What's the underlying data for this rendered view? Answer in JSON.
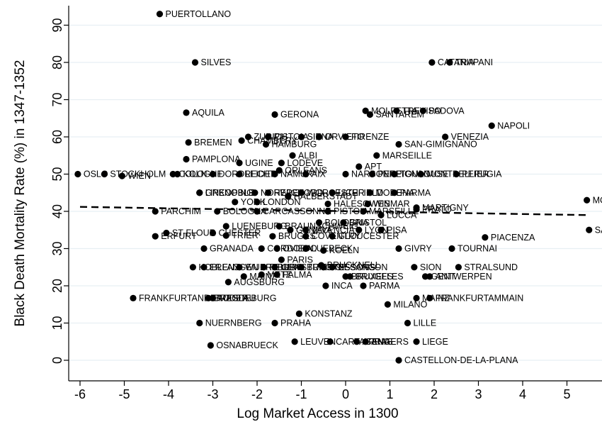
{
  "chart_data": {
    "type": "scatter",
    "xlabel": "Log Market Access in 1300",
    "ylabel": "Black Death Mortality Rate (%) in 1347-1352",
    "xlim": [
      -6.3,
      5.6
    ],
    "ylim": [
      -2,
      95
    ],
    "xticks": [
      -6,
      -5,
      -4,
      -3,
      -2,
      -1,
      0,
      1,
      2,
      3,
      4,
      5
    ],
    "yticks": [
      0,
      10,
      20,
      30,
      40,
      50,
      60,
      70,
      80,
      90
    ],
    "grid": "horizontal",
    "fit_line": [
      [
        -6.0,
        41.2
      ],
      [
        5.45,
        39.0
      ]
    ],
    "points": [
      {
        "x": -4.2,
        "y": 93,
        "label": "PUERTOLLANO"
      },
      {
        "x": -3.4,
        "y": 80,
        "label": "SILVES"
      },
      {
        "x": 1.95,
        "y": 80,
        "label": "CATANIA"
      },
      {
        "x": 2.35,
        "y": 80,
        "label": "TRAPANI"
      },
      {
        "x": -3.6,
        "y": 66.5,
        "label": "AQUILA"
      },
      {
        "x": -1.6,
        "y": 66,
        "label": "GERONA"
      },
      {
        "x": 0.45,
        "y": 67,
        "label": "MOLFETTA"
      },
      {
        "x": 1.15,
        "y": 67,
        "label": "TREVISO"
      },
      {
        "x": 1.75,
        "y": 67,
        "label": "PADOVA"
      },
      {
        "x": 0.55,
        "y": 66,
        "label": "SANTAREM"
      },
      {
        "x": 3.3,
        "y": 63,
        "label": "NAPOLI"
      },
      {
        "x": -3.55,
        "y": 58.5,
        "label": "BREMEN"
      },
      {
        "x": -2.2,
        "y": 60,
        "label": "ZURICH"
      },
      {
        "x": -2.35,
        "y": 59,
        "label": "CHAMBERY"
      },
      {
        "x": -1.75,
        "y": 60,
        "label": "PISTOIA"
      },
      {
        "x": -1.8,
        "y": 58,
        "label": "HAMBURG"
      },
      {
        "x": -1.0,
        "y": 60,
        "label": "SIENA"
      },
      {
        "x": -0.6,
        "y": 60,
        "label": "ORVIETO"
      },
      {
        "x": 0.0,
        "y": 60,
        "label": "FIRENZE"
      },
      {
        "x": 2.25,
        "y": 60,
        "label": "VENEZIA"
      },
      {
        "x": 1.2,
        "y": 58,
        "label": "SAN-GIMIGNANO"
      },
      {
        "x": -3.6,
        "y": 54,
        "label": "PAMPLONA"
      },
      {
        "x": -1.2,
        "y": 55,
        "label": "ALBI"
      },
      {
        "x": 0.7,
        "y": 55,
        "label": "MARSEILLE"
      },
      {
        "x": -2.4,
        "y": 53,
        "label": "UGINE"
      },
      {
        "x": -1.45,
        "y": 53,
        "label": "LODEVE"
      },
      {
        "x": -1.5,
        "y": 51,
        "label": "ORLEANS"
      },
      {
        "x": 0.3,
        "y": 52,
        "label": "APT"
      },
      {
        "x": -6.05,
        "y": 50,
        "label": "OSLO"
      },
      {
        "x": -5.45,
        "y": 50,
        "label": "STOCKHOLM"
      },
      {
        "x": -5.05,
        "y": 49.5,
        "label": "WIEN"
      },
      {
        "x": -3.9,
        "y": 50,
        "label": "COLOGNE"
      },
      {
        "x": -3.8,
        "y": 50,
        "label": "KOLN"
      },
      {
        "x": -3.0,
        "y": 50,
        "label": "DORDRECHT"
      },
      {
        "x": -2.4,
        "y": 50,
        "label": "LEIDEN"
      },
      {
        "x": -1.6,
        "y": 50,
        "label": "NAMUR"
      },
      {
        "x": -0.9,
        "y": 50,
        "label": "AIX"
      },
      {
        "x": 0.0,
        "y": 50,
        "label": "NARBONNE"
      },
      {
        "x": 0.6,
        "y": 50,
        "label": "PERPIGNAN"
      },
      {
        "x": 1.1,
        "y": 50,
        "label": "TOULOUSE"
      },
      {
        "x": 1.7,
        "y": 50,
        "label": "MONTPELLIER"
      },
      {
        "x": 2.5,
        "y": 50,
        "label": "PERUGIA"
      },
      {
        "x": -3.3,
        "y": 45,
        "label": "GRENOBLE"
      },
      {
        "x": -3.3,
        "y": 45,
        "label": "LINKOPING"
      },
      {
        "x": -2.05,
        "y": 45,
        "label": "NORWICH"
      },
      {
        "x": -1.75,
        "y": 45,
        "label": "HEREFORD"
      },
      {
        "x": -1.0,
        "y": 45,
        "label": "WORCESTER"
      },
      {
        "x": -0.3,
        "y": 45,
        "label": "LICHFIELD"
      },
      {
        "x": 0.55,
        "y": 45,
        "label": "MODENA"
      },
      {
        "x": 1.1,
        "y": 45,
        "label": "PARMA"
      },
      {
        "x": -2.5,
        "y": 42.5,
        "label": "YORK"
      },
      {
        "x": -2.0,
        "y": 42.5,
        "label": "LONDON"
      },
      {
        "x": -1.3,
        "y": 44,
        "label": "HALBERSTADT"
      },
      {
        "x": -0.4,
        "y": 42,
        "label": "HALESOWEN"
      },
      {
        "x": 0.5,
        "y": 42,
        "label": "WISMAR"
      },
      {
        "x": -4.3,
        "y": 40,
        "label": "PARCHIM"
      },
      {
        "x": -2.9,
        "y": 40,
        "label": "BOLOGNA"
      },
      {
        "x": -2.0,
        "y": 40,
        "label": "CARCASSONNE"
      },
      {
        "x": -0.4,
        "y": 40,
        "label": "PISTOIA"
      },
      {
        "x": 0.4,
        "y": 40,
        "label": "MARSEILLE"
      },
      {
        "x": 1.6,
        "y": 40.5,
        "label": "PRATO"
      },
      {
        "x": 1.6,
        "y": 41,
        "label": "MARTIGNY"
      },
      {
        "x": 0.8,
        "y": 39,
        "label": "LUCCA"
      },
      {
        "x": -2.7,
        "y": 36,
        "label": "LUENEBURG"
      },
      {
        "x": -1.5,
        "y": 36,
        "label": "BRAUNSCHWEIG"
      },
      {
        "x": -0.6,
        "y": 37,
        "label": "BOLOGNA"
      },
      {
        "x": -0.05,
        "y": 37,
        "label": "BRISTOL"
      },
      {
        "x": -1.25,
        "y": 35,
        "label": "GENEVA"
      },
      {
        "x": -0.9,
        "y": 35,
        "label": "VALENCIA"
      },
      {
        "x": 0.3,
        "y": 35,
        "label": "LYON"
      },
      {
        "x": 0.8,
        "y": 35,
        "label": "PISA"
      },
      {
        "x": -4.3,
        "y": 33.3,
        "label": "ERFURT"
      },
      {
        "x": -4.05,
        "y": 34.2,
        "label": "ST-FLOUR"
      },
      {
        "x": -3.0,
        "y": 34.2,
        "label": "CHESTER"
      },
      {
        "x": -2.7,
        "y": 33.5,
        "label": "TRIER"
      },
      {
        "x": -1.65,
        "y": 33.3,
        "label": "BRUGES"
      },
      {
        "x": -0.9,
        "y": 33.3,
        "label": "COVENTRY"
      },
      {
        "x": -0.3,
        "y": 33.3,
        "label": "GLOUCESTER"
      },
      {
        "x": 3.15,
        "y": 33,
        "label": "PIACENZA"
      },
      {
        "x": -3.2,
        "y": 30,
        "label": "GRANADA"
      },
      {
        "x": -1.9,
        "y": 30,
        "label": "CORDOBA"
      },
      {
        "x": -1.55,
        "y": 30,
        "label": "OVIEDO"
      },
      {
        "x": -0.9,
        "y": 30,
        "label": "LUEBECK"
      },
      {
        "x": -0.5,
        "y": 29.5,
        "label": "KOELN"
      },
      {
        "x": 1.2,
        "y": 30,
        "label": "GIVRY"
      },
      {
        "x": 2.4,
        "y": 30,
        "label": "TOURNAI"
      },
      {
        "x": -1.45,
        "y": 27,
        "label": "PARIS"
      },
      {
        "x": -3.45,
        "y": 25,
        "label": "KOBLENZ"
      },
      {
        "x": -3.2,
        "y": 25,
        "label": "ERLANGEN"
      },
      {
        "x": -2.4,
        "y": 25,
        "label": "WUERZBURG"
      },
      {
        "x": -1.85,
        "y": 25,
        "label": "REGENSBURG"
      },
      {
        "x": -1.6,
        "y": 25,
        "label": "ULM"
      },
      {
        "x": -1.0,
        "y": 25,
        "label": "TRIESTE"
      },
      {
        "x": -0.55,
        "y": 25.5,
        "label": "BRUCKNELL"
      },
      {
        "x": -0.3,
        "y": 25,
        "label": "BESANCON"
      },
      {
        "x": -0.5,
        "y": 25,
        "label": "SOISSONS"
      },
      {
        "x": 1.55,
        "y": 25,
        "label": "SION"
      },
      {
        "x": 2.55,
        "y": 25,
        "label": "STRALSUND"
      },
      {
        "x": -2.3,
        "y": 22.5,
        "label": "MAINZ"
      },
      {
        "x": -1.9,
        "y": 23,
        "label": "METZ"
      },
      {
        "x": -1.55,
        "y": 23,
        "label": "PALMA"
      },
      {
        "x": 0.0,
        "y": 22.5,
        "label": "BRUXELLES"
      },
      {
        "x": 0.1,
        "y": 22.5,
        "label": "BRUGES"
      },
      {
        "x": 1.8,
        "y": 22.5,
        "label": "GENT"
      },
      {
        "x": 1.9,
        "y": 22.5,
        "label": "ANTWERPEN"
      },
      {
        "x": -2.65,
        "y": 21,
        "label": "AUGSBURG"
      },
      {
        "x": -0.45,
        "y": 20,
        "label": "INCA"
      },
      {
        "x": 0.4,
        "y": 20,
        "label": "PARMA"
      },
      {
        "x": -4.8,
        "y": 16.7,
        "label": "FRANKFURTANDERODER"
      },
      {
        "x": -3.1,
        "y": 16.7,
        "label": "BRESLAU"
      },
      {
        "x": -3.0,
        "y": 16.7,
        "label": "MAGDEBURG"
      },
      {
        "x": 1.6,
        "y": 16.7,
        "label": "MAINZ"
      },
      {
        "x": 1.9,
        "y": 16.7,
        "label": "FRANKFURTAMMAIN"
      },
      {
        "x": 0.95,
        "y": 15,
        "label": "MILANO"
      },
      {
        "x": -1.05,
        "y": 12.5,
        "label": "KONSTANZ"
      },
      {
        "x": -3.3,
        "y": 10,
        "label": "NUERNBERG"
      },
      {
        "x": -1.6,
        "y": 10,
        "label": "PRAHA"
      },
      {
        "x": 1.4,
        "y": 10,
        "label": "LILLE"
      },
      {
        "x": -3.05,
        "y": 4,
        "label": "OSNABRUECK"
      },
      {
        "x": -1.15,
        "y": 5,
        "label": "LEUVEN"
      },
      {
        "x": -0.35,
        "y": 5,
        "label": "CARTAGENA"
      },
      {
        "x": 0.25,
        "y": 5,
        "label": "ARRAS"
      },
      {
        "x": 0.45,
        "y": 5,
        "label": "ANGERS"
      },
      {
        "x": 1.6,
        "y": 5,
        "label": "LIEGE"
      },
      {
        "x": 1.2,
        "y": 0,
        "label": "CASTELLON-DE-LA-PLANA"
      },
      {
        "x": 5.45,
        "y": 43,
        "label": "MO"
      },
      {
        "x": 5.5,
        "y": 35,
        "label": "SA"
      }
    ]
  }
}
